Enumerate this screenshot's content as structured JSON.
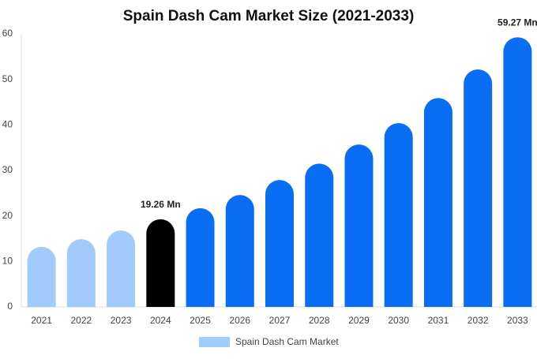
{
  "chart_data": {
    "type": "bar",
    "title": "Spain Dash Cam Market Size (2021-2033)",
    "categories": [
      "2021",
      "2022",
      "2023",
      "2024",
      "2025",
      "2026",
      "2027",
      "2028",
      "2029",
      "2030",
      "2031",
      "2032",
      "2033"
    ],
    "series": [
      {
        "name": "Spain Dash Cam Market",
        "color": "#a0cbfb",
        "values": [
          13.2,
          14.9,
          16.8,
          19.26,
          21.7,
          24.6,
          27.9,
          31.5,
          35.7,
          40.4,
          45.9,
          52.2,
          59.27
        ],
        "value_labels": [
          null,
          null,
          null,
          "19.26 Mn",
          null,
          null,
          null,
          null,
          null,
          null,
          null,
          null,
          "59.27 Mn"
        ],
        "colors": [
          "#a0cbfb",
          "#a0cbfb",
          "#a0cbfb",
          "#000000",
          "#0a6ef5",
          "#0a6ef5",
          "#0a6ef5",
          "#0a6ef5",
          "#0a6ef5",
          "#0a6ef5",
          "#0a6ef5",
          "#0a6ef5",
          "#0a6ef5"
        ]
      }
    ],
    "ylim": [
      0,
      60
    ],
    "yticks": [
      0,
      10,
      20,
      30,
      40,
      50,
      60
    ],
    "grid": false
  }
}
